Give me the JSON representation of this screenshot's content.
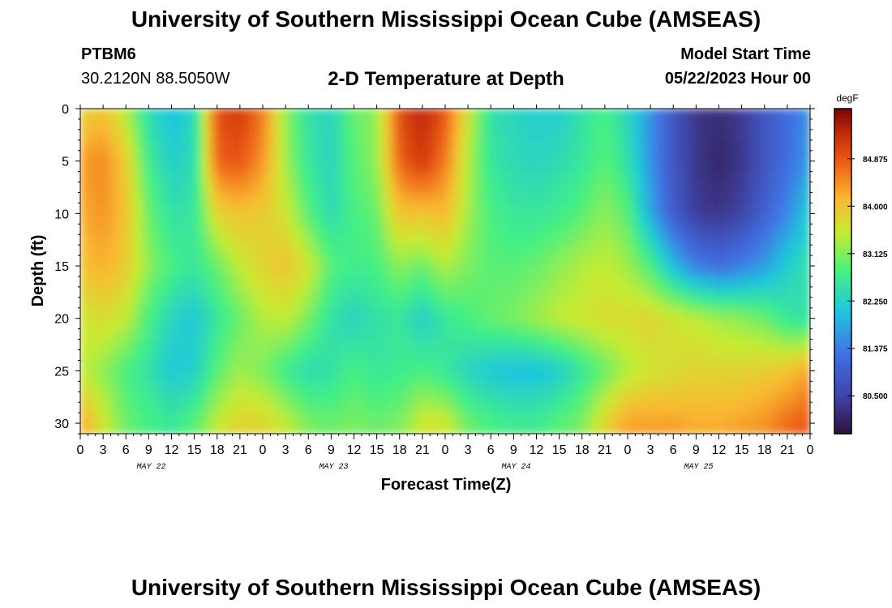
{
  "page": {
    "title": "University of Southern Mississippi Ocean Cube (AMSEAS)",
    "bottom_title": "University of Southern Mississippi Ocean Cube (AMSEAS)",
    "station_id": "PTBM6",
    "station_coords": "30.2120N  88.5050W",
    "plot_title": "2-D Temperature at Depth",
    "start_label": "Model Start Time",
    "start_value": "05/22/2023 Hour 00"
  },
  "chart_data": {
    "type": "heatmap",
    "title": "2-D Temperature at Depth",
    "xlabel": "Forecast Time(Z)",
    "ylabel": "Depth (ft)",
    "x_range_hours": [
      0,
      96
    ],
    "y_range": [
      0,
      31
    ],
    "y_ticks": [
      0,
      5,
      10,
      15,
      20,
      25,
      30
    ],
    "x_tick_labels": [
      "0",
      "3",
      "6",
      "9",
      "12",
      "15",
      "18",
      "21",
      "0",
      "3",
      "6",
      "9",
      "12",
      "15",
      "18",
      "21",
      "0",
      "3",
      "6",
      "9",
      "12",
      "15",
      "18",
      "21",
      "0",
      "3",
      "6",
      "9",
      "12",
      "15",
      "18",
      "21",
      "0"
    ],
    "date_labels": [
      "MAY 22",
      "MAY 23",
      "MAY 24",
      "MAY 25"
    ],
    "colorbar": {
      "unit": "degF",
      "range": [
        79.8,
        85.8
      ],
      "ticks": [
        "84.875",
        "84.000",
        "83.125",
        "82.250",
        "81.375",
        "80.500"
      ]
    },
    "depths_ft": [
      0,
      5,
      10,
      15,
      20,
      25,
      30
    ],
    "times_h": [
      0,
      3,
      6,
      9,
      12,
      15,
      18,
      21,
      24,
      27,
      30,
      33,
      36,
      39,
      42,
      45,
      48,
      51,
      54,
      57,
      60,
      63,
      66,
      69,
      72,
      75,
      78,
      81,
      84,
      87,
      90,
      93,
      96
    ],
    "values_degF": [
      [
        83.8,
        84.0,
        83.4,
        82.4,
        82.0,
        82.3,
        85.0,
        85.2,
        84.6,
        83.2,
        82.5,
        82.3,
        83.0,
        83.2,
        85.0,
        85.4,
        84.9,
        83.6,
        82.5,
        82.3,
        82.2,
        82.2,
        82.5,
        82.8,
        82.3,
        81.6,
        80.8,
        80.3,
        80.2,
        80.4,
        80.8,
        81.2,
        81.6
      ],
      [
        84.3,
        84.5,
        83.9,
        82.7,
        82.2,
        82.4,
        84.8,
        84.9,
        84.4,
        83.3,
        82.6,
        82.3,
        82.9,
        83.2,
        84.8,
        85.2,
        84.6,
        83.4,
        82.6,
        82.4,
        82.3,
        82.4,
        82.6,
        82.9,
        82.5,
        81.6,
        80.8,
        80.3,
        80.1,
        80.3,
        80.8,
        81.2,
        81.7
      ],
      [
        84.2,
        84.4,
        84.0,
        83.0,
        82.5,
        82.6,
        83.8,
        84.0,
        83.9,
        83.6,
        82.9,
        82.4,
        82.8,
        83.0,
        84.0,
        84.0,
        84.1,
        83.3,
        82.8,
        82.6,
        82.6,
        82.7,
        82.9,
        83.2,
        82.9,
        81.8,
        80.9,
        80.4,
        80.3,
        80.5,
        81.0,
        81.5,
        82.2
      ],
      [
        84.0,
        84.2,
        83.9,
        83.2,
        82.8,
        82.6,
        83.0,
        83.5,
        83.8,
        84.0,
        83.6,
        82.9,
        82.7,
        82.8,
        83.2,
        83.0,
        83.4,
        83.1,
        82.9,
        82.9,
        83.0,
        83.2,
        83.4,
        83.5,
        83.3,
        82.8,
        82.0,
        81.4,
        81.2,
        81.4,
        81.7,
        82.2,
        82.5
      ],
      [
        83.6,
        83.7,
        83.5,
        82.8,
        82.3,
        82.1,
        82.6,
        83.0,
        83.4,
        83.5,
        83.1,
        82.5,
        82.3,
        82.5,
        82.6,
        82.2,
        82.6,
        82.8,
        83.0,
        83.1,
        83.3,
        83.5,
        83.6,
        83.7,
        83.7,
        83.8,
        83.6,
        83.5,
        83.3,
        83.2,
        83.0,
        82.6,
        82.5
      ],
      [
        83.5,
        83.2,
        82.8,
        82.5,
        82.1,
        82.2,
        82.9,
        83.3,
        83.1,
        82.7,
        82.4,
        82.5,
        82.8,
        82.6,
        82.7,
        82.8,
        82.6,
        82.3,
        82.1,
        82.0,
        82.0,
        82.2,
        82.6,
        83.0,
        83.4,
        83.6,
        83.7,
        83.8,
        83.8,
        83.8,
        83.9,
        84.0,
        84.3
      ],
      [
        84.3,
        83.6,
        83.0,
        82.8,
        82.6,
        82.9,
        83.5,
        83.8,
        83.8,
        83.5,
        83.1,
        83.0,
        83.1,
        83.0,
        83.1,
        83.6,
        83.6,
        83.0,
        82.8,
        82.7,
        82.7,
        82.9,
        83.1,
        83.8,
        84.3,
        84.3,
        84.3,
        84.2,
        84.2,
        84.3,
        84.4,
        84.7,
        84.9
      ]
    ]
  }
}
